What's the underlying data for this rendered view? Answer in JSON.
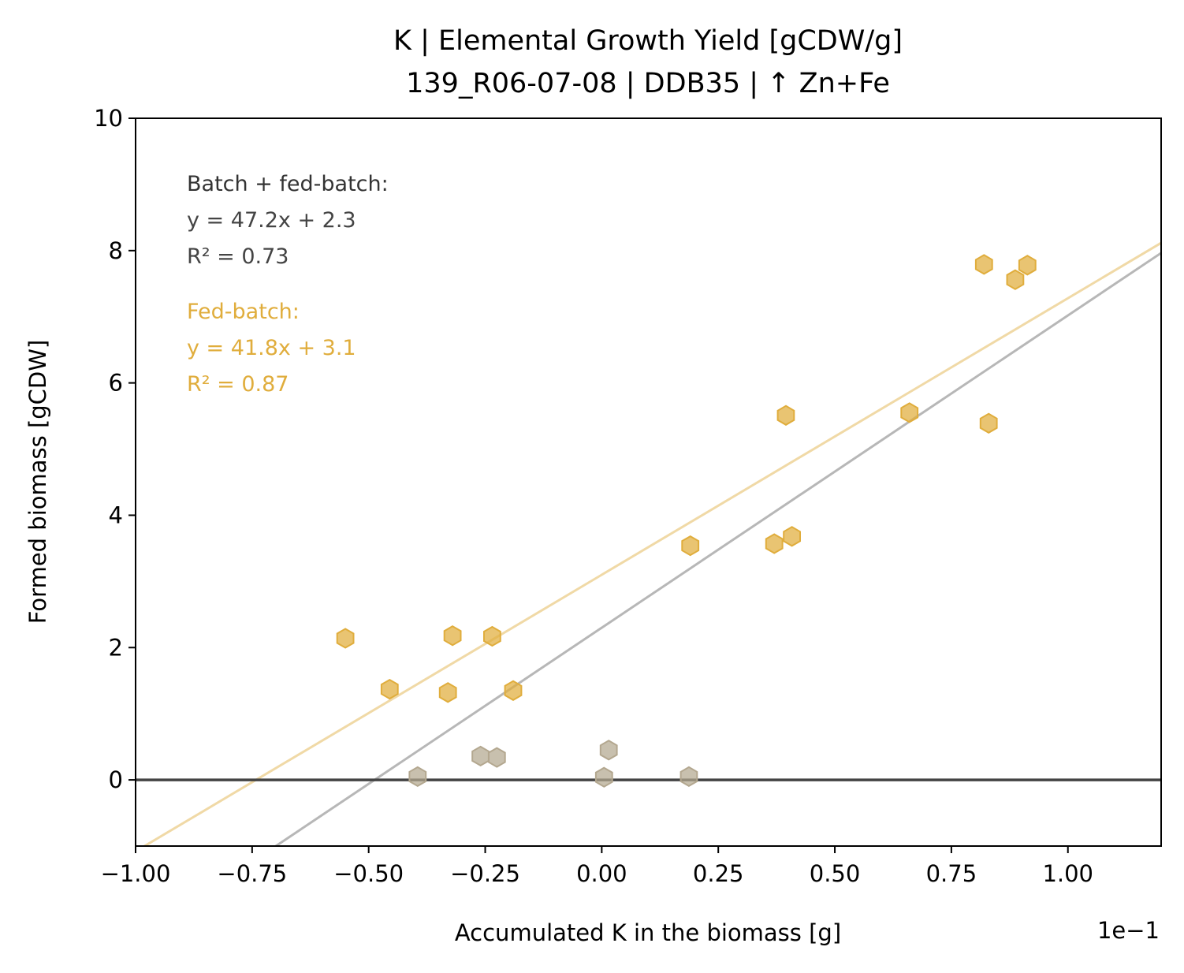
{
  "chart_data": {
    "type": "scatter",
    "title_lines": [
      "K  |  Elemental Growth Yield [gCDW/g]",
      "139_R06-07-08  |  DDB35  |  ↑ Zn+Fe"
    ],
    "xlabel": "Accumulated K in the biomass [g]",
    "ylabel": "Formed biomass [gCDW]",
    "x_offset_text": "1e−1",
    "x_scale_factor": 0.1,
    "xlim": [
      -1.0,
      1.2
    ],
    "ylim": [
      -1.0,
      10.0
    ],
    "xticks": [
      -1.0,
      -0.75,
      -0.5,
      -0.25,
      0.0,
      0.25,
      0.5,
      0.75,
      1.0
    ],
    "xtick_labels": [
      "−1.00",
      "−0.75",
      "−0.50",
      "−0.25",
      "0.00",
      "0.25",
      "0.50",
      "0.75",
      "1.00"
    ],
    "yticks": [
      0,
      2,
      4,
      6,
      8,
      10
    ],
    "ytick_labels": [
      "0",
      "2",
      "4",
      "6",
      "8",
      "10"
    ],
    "grid": false,
    "legend": "none",
    "zero_line_y": 0,
    "colors": {
      "fed_batch": "#e0ad3c",
      "batch": "#b3a78f",
      "combined_fit": "#999999",
      "fed_batch_fit": "#f0d9a6",
      "zero_line": "#444444",
      "batch_annotation": "#333333",
      "fed_batch_annotation": "#e0ad3c"
    },
    "series": [
      {
        "group": "fed_batch",
        "marker": "hexagon",
        "points": [
          [
            -0.55,
            2.14
          ],
          [
            -0.455,
            1.37
          ],
          [
            -0.33,
            1.32
          ],
          [
            -0.32,
            2.18
          ],
          [
            -0.235,
            2.17
          ],
          [
            -0.19,
            1.35
          ],
          [
            0.19,
            3.54
          ],
          [
            0.37,
            3.57
          ],
          [
            0.395,
            5.51
          ],
          [
            0.408,
            3.68
          ],
          [
            0.66,
            5.55
          ],
          [
            0.82,
            7.79
          ],
          [
            0.83,
            5.39
          ],
          [
            0.887,
            7.56
          ],
          [
            0.913,
            7.78
          ]
        ]
      },
      {
        "group": "batch",
        "marker": "hexagon",
        "points": [
          [
            -0.395,
            0.05
          ],
          [
            -0.26,
            0.36
          ],
          [
            -0.225,
            0.34
          ],
          [
            0.005,
            0.04
          ],
          [
            0.015,
            0.45
          ],
          [
            0.187,
            0.05
          ]
        ]
      }
    ],
    "fits": [
      {
        "group": "combined",
        "slope": 47.2,
        "intercept": 2.3,
        "r2": 0.73
      },
      {
        "group": "fed_batch",
        "slope": 41.8,
        "intercept": 3.1,
        "r2": 0.87
      }
    ],
    "annotations": {
      "batch": [
        "Batch + fed-batch:",
        "y = 47.2x + 2.3",
        "R² = 0.73"
      ],
      "fed_batch": [
        "Fed-batch:",
        "y = 41.8x + 3.1",
        "R² = 0.87"
      ]
    }
  }
}
